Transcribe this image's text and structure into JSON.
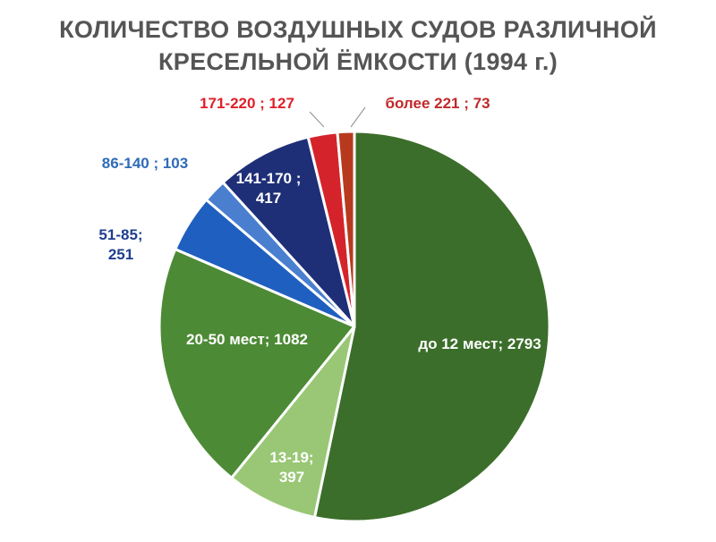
{
  "chart_data": {
    "type": "pie",
    "title": {
      "line1": "КОЛИЧЕСТВО ВОЗДУШНЫХ СУДОВ РАЗЛИЧНОЙ",
      "line2": "КРЕСЕЛЬНОЙ ЁМКОСТИ (1994 г.)"
    },
    "slices": [
      {
        "id": "s1",
        "label_lines": [
          "до 12 мест; 2793"
        ],
        "value": 2793,
        "color": "#3b6e2a",
        "label_color": "#ffffff"
      },
      {
        "id": "s2",
        "label_lines": [
          "13-19;",
          "397"
        ],
        "value": 397,
        "color": "#99c775",
        "label_color": "#ffffff"
      },
      {
        "id": "s3",
        "label_lines": [
          "20-50 мест; 1082"
        ],
        "value": 1082,
        "color": "#4d8a36",
        "label_color": "#ffffff"
      },
      {
        "id": "s4",
        "label_lines": [
          "51-85;",
          "251"
        ],
        "value": 251,
        "color": "#1f5fbf",
        "label_color": "#1f3f8f"
      },
      {
        "id": "s5",
        "label_lines": [
          "86-140 ; 103"
        ],
        "value": 103,
        "color": "#4a7fd0",
        "label_color": "#2e6bb8"
      },
      {
        "id": "s6",
        "label_lines": [
          "141-170 ;",
          "417"
        ],
        "value": 417,
        "color": "#1e2f78",
        "label_color": "#ffffff"
      },
      {
        "id": "s7",
        "label_lines": [
          "171-220 ; 127"
        ],
        "value": 127,
        "color": "#d5232b",
        "label_color": "#e0202a"
      },
      {
        "id": "s8",
        "label_lines": [
          "более 221 ; 73"
        ],
        "value": 73,
        "color": "#b83a1e",
        "label_color": "#c0282a"
      }
    ]
  }
}
